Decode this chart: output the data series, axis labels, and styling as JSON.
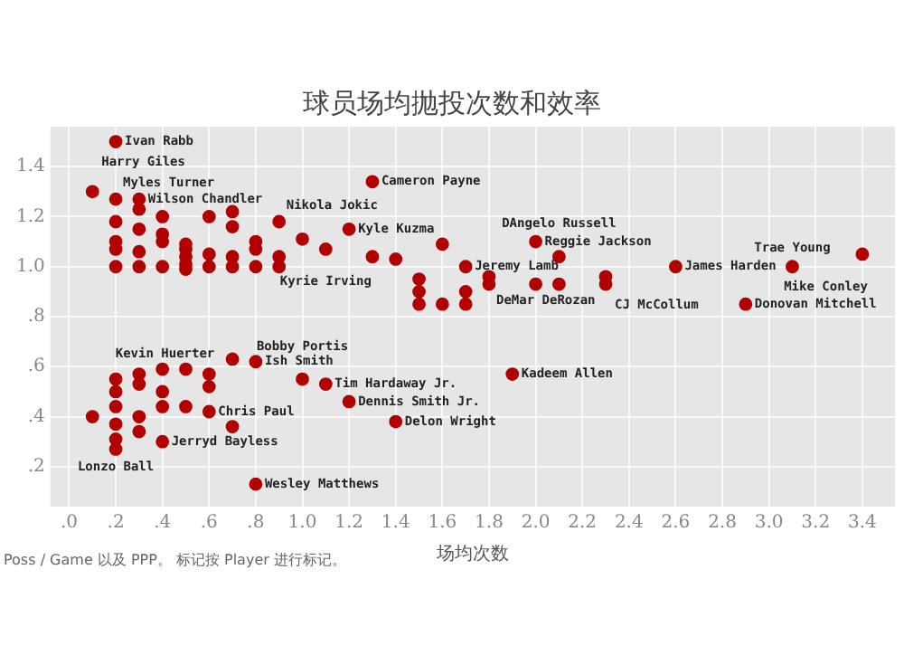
{
  "chart_data": {
    "type": "scatter",
    "title": "球员场均抛投次数和效率",
    "xlabel": "场均次数",
    "xlim": [
      -0.08,
      3.54
    ],
    "ylim": [
      0.04,
      1.56
    ],
    "xticks": [
      {
        "value": 0,
        "label": ".0"
      },
      {
        "value": 0.2,
        "label": ".2"
      },
      {
        "value": 0.4,
        "label": ".4"
      },
      {
        "value": 0.6,
        "label": ".6"
      },
      {
        "value": 0.8,
        "label": ".8"
      },
      {
        "value": 1,
        "label": "1.0"
      },
      {
        "value": 1.2,
        "label": "1.2"
      },
      {
        "value": 1.4,
        "label": "1.4"
      },
      {
        "value": 1.6,
        "label": "1.6"
      },
      {
        "value": 1.8,
        "label": "1.8"
      },
      {
        "value": 2,
        "label": "2.0"
      },
      {
        "value": 2.2,
        "label": "2.2"
      },
      {
        "value": 2.4,
        "label": "2.4"
      },
      {
        "value": 2.6,
        "label": "2.6"
      },
      {
        "value": 2.8,
        "label": "2.8"
      },
      {
        "value": 3,
        "label": "3.0"
      },
      {
        "value": 3.2,
        "label": "3.2"
      },
      {
        "value": 3.4,
        "label": "3.4"
      }
    ],
    "yticks": [
      {
        "value": 0.2,
        "label": ".2"
      },
      {
        "value": 0.4,
        "label": ".4"
      },
      {
        "value": 0.6,
        "label": ".6"
      },
      {
        "value": 0.8,
        "label": ".8"
      },
      {
        "value": 1,
        "label": "1.0"
      },
      {
        "value": 1.2,
        "label": "1.2"
      },
      {
        "value": 1.4,
        "label": "1.4"
      }
    ],
    "grid": true,
    "legend": false,
    "marker": "circle",
    "series": [
      {
        "color": "#b00000",
        "x": [
          0.1,
          0.2,
          0.2,
          0.2,
          0.2,
          0.2,
          0.2,
          0.3,
          0.3,
          0.3,
          0.3,
          0.3,
          0.4,
          0.4,
          0.4,
          0.4,
          0.5,
          0.5,
          0.5,
          0.5,
          0.5,
          0.6,
          0.6,
          0.6,
          0.7,
          0.7,
          0.7,
          0.7,
          0.8,
          0.8,
          0.8,
          0.9,
          0.9,
          0.9,
          1.0,
          1.1,
          1.2,
          1.3,
          1.3,
          1.4,
          1.6,
          1.7,
          2.0,
          2.1,
          1.8,
          1.8,
          2.0,
          2.1,
          1.7,
          1.7,
          1.6,
          1.5,
          1.5,
          1.5,
          2.6,
          3.1,
          3.4,
          2.3,
          2.3,
          2.9,
          0.2,
          0.2,
          0.2,
          0.2,
          0.2,
          0.2,
          0.1,
          0.3,
          0.3,
          0.3,
          0.3,
          0.4,
          0.4,
          0.4,
          0.4,
          0.5,
          0.5,
          0.6,
          0.6,
          0.6,
          0.7,
          0.7,
          0.8,
          0.8,
          1.0,
          1.1,
          1.2,
          1.4,
          1.9
        ],
        "values": [
          1.3,
          1.5,
          1.27,
          1.18,
          1.1,
          1.07,
          1.0,
          1.27,
          1.23,
          1.15,
          1.06,
          1.0,
          1.2,
          1.13,
          1.1,
          1.0,
          1.09,
          1.07,
          1.04,
          1.01,
          0.99,
          1.2,
          1.05,
          1.0,
          1.22,
          1.16,
          1.04,
          1.0,
          1.1,
          1.07,
          1.0,
          1.18,
          1.04,
          1.0,
          1.11,
          1.07,
          1.15,
          1.34,
          1.04,
          1.03,
          1.09,
          1.0,
          1.1,
          1.04,
          0.96,
          0.93,
          0.93,
          0.93,
          0.9,
          0.85,
          0.85,
          0.95,
          0.9,
          0.85,
          1.0,
          1.0,
          1.05,
          0.96,
          0.93,
          0.85,
          0.55,
          0.5,
          0.44,
          0.37,
          0.31,
          0.27,
          0.4,
          0.57,
          0.53,
          0.4,
          0.34,
          0.59,
          0.5,
          0.44,
          0.3,
          0.59,
          0.44,
          0.57,
          0.52,
          0.42,
          0.63,
          0.36,
          0.62,
          0.13,
          0.55,
          0.53,
          0.46,
          0.38,
          0.57
        ]
      }
    ],
    "annotations": [
      {
        "text": "Ivan Rabb",
        "x": 0.2,
        "y": 1.5
      },
      {
        "text": "Myles Turner",
        "x": 0.2,
        "y": 1.27
      },
      {
        "text": "Harry Giles",
        "x": 0.1,
        "y": 1.3
      },
      {
        "text": "Wilson Chandler",
        "x": 0.3,
        "y": 1.27
      },
      {
        "text": "Nikola Jokic",
        "x": 0.9,
        "y": 1.18
      },
      {
        "text": "Cameron Payne",
        "x": 1.3,
        "y": 1.34
      },
      {
        "text": "Kyle Kuzma",
        "x": 1.2,
        "y": 1.15
      },
      {
        "text": "Kyrie Irving",
        "x": 1.1,
        "y": 1.07
      },
      {
        "text": "Reggie Jackson",
        "x": 2.0,
        "y": 1.1
      },
      {
        "text": "Jeremy Lamb",
        "x": 1.7,
        "y": 1.0
      },
      {
        "text": "DAngelo Russell",
        "x": 2.1,
        "y": 1.04
      },
      {
        "text": "CJ McCollum",
        "x": 2.3,
        "y": 0.96
      },
      {
        "text": "James Harden",
        "x": 2.6,
        "y": 1.0
      },
      {
        "text": "Trae Young",
        "x": 3.1,
        "y": 1.0
      },
      {
        "text": "Mike Conley",
        "x": 3.4,
        "y": 1.05
      },
      {
        "text": "DeMar DeRozan",
        "x": 1.8,
        "y": 0.93
      },
      {
        "text": "Donovan Mitchell",
        "x": 2.9,
        "y": 0.85
      },
      {
        "text": "Ish Smith",
        "x": 0.8,
        "y": 0.62
      },
      {
        "text": "Bobby Portis",
        "x": 1.0,
        "y": 0.55
      },
      {
        "text": "Tim Hardaway Jr.",
        "x": 1.1,
        "y": 0.53
      },
      {
        "text": "Kadeem Allen",
        "x": 1.9,
        "y": 0.57
      },
      {
        "text": "Kevin Huerter",
        "x": 0.6,
        "y": 0.52
      },
      {
        "text": "Chris Paul",
        "x": 0.6,
        "y": 0.42
      },
      {
        "text": "Dennis Smith Jr.",
        "x": 1.2,
        "y": 0.46
      },
      {
        "text": "Jerryd Bayless",
        "x": 0.4,
        "y": 0.3
      },
      {
        "text": "Delon Wright",
        "x": 1.4,
        "y": 0.38
      },
      {
        "text": "Lonzo Ball",
        "x": 0.2,
        "y": 0.27
      },
      {
        "text": "Wesley Matthews",
        "x": 0.8,
        "y": 0.13
      },
      "Poss / Game 以及 PPP。 标记按 Player 进行标记。"
    ]
  }
}
